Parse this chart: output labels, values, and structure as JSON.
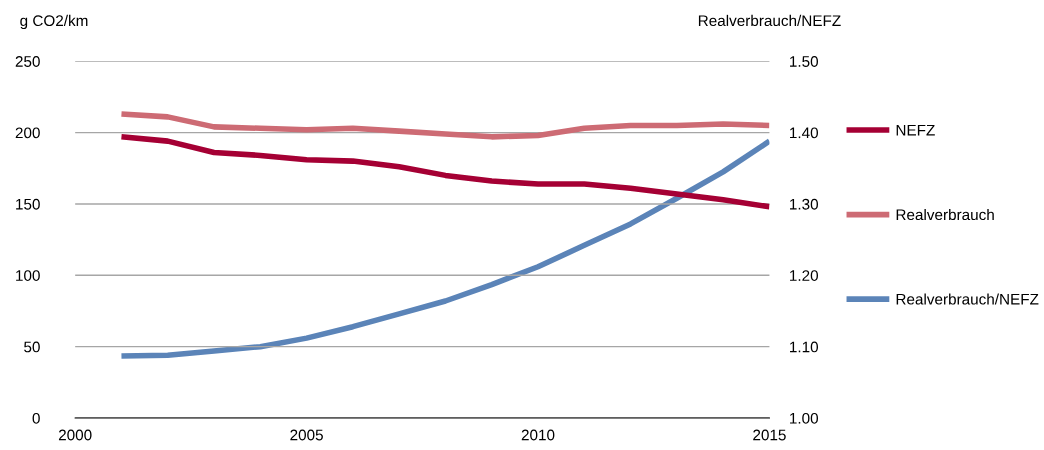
{
  "chart_data": {
    "type": "line",
    "ylabel": "g CO2/km",
    "y2label": "Realverbrauch/NEFZ",
    "x": [
      2001,
      2002,
      2003,
      2004,
      2005,
      2006,
      2007,
      2008,
      2009,
      2010,
      2011,
      2012,
      2013,
      2014,
      2015
    ],
    "series": [
      {
        "name": "NEFZ",
        "color": "#a50034",
        "values": [
          197,
          194,
          186,
          184,
          181,
          180,
          176,
          170,
          166,
          164,
          164,
          161,
          157,
          153,
          148
        ]
      },
      {
        "name": "Realverbrauch",
        "color": "#cd6b74",
        "values": [
          213,
          211,
          204,
          203,
          202,
          203,
          201,
          199,
          197,
          198,
          203,
          205,
          205,
          206,
          205
        ]
      },
      {
        "name": "Realverbrauch/NEFZ",
        "color": "#5b84b8",
        "axis": "y2",
        "values": [
          1.087,
          1.088,
          1.094,
          1.1,
          1.112,
          1.128,
          1.146,
          1.164,
          1.187,
          1.212,
          1.242,
          1.272,
          1.308,
          1.345,
          1.388
        ]
      }
    ],
    "xlim": [
      2000,
      2015
    ],
    "xticks": [
      2000,
      2005,
      2010,
      2015
    ],
    "ylim": [
      0,
      250
    ],
    "yticks": [
      0,
      50,
      100,
      150,
      200,
      250
    ],
    "y2lim": [
      1.0,
      1.5
    ],
    "y2ticks": [
      {
        "value": 1.0,
        "label": "1.00"
      },
      {
        "value": 1.1,
        "label": "1.10"
      },
      {
        "value": 1.2,
        "label": "1.20"
      },
      {
        "value": 1.3,
        "label": "1.30"
      },
      {
        "value": 1.4,
        "label": "1.40"
      },
      {
        "value": 1.5,
        "label": "1.50"
      }
    ],
    "grid": "y",
    "legend": "right",
    "marker": "none",
    "line_style": "solid"
  }
}
